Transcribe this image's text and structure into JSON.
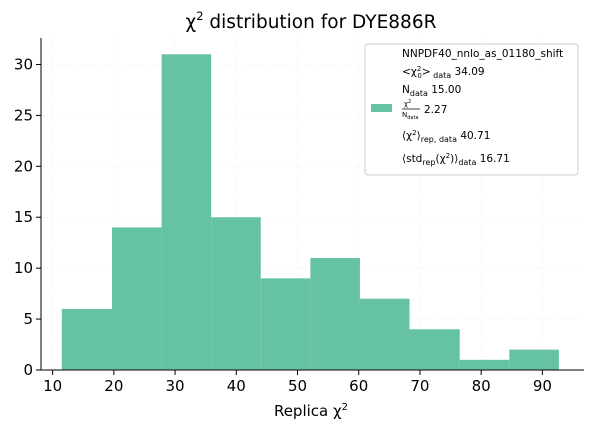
{
  "chart_data": {
    "type": "bar",
    "title_prefix": "χ",
    "title_sup": "2",
    "title_rest": " distribution for DYE886R",
    "xlabel_prefix": "Replica χ",
    "xlabel_sup": "2",
    "ylabel": "",
    "xlim": [
      8.1,
      96.8
    ],
    "ylim": [
      0,
      32.6
    ],
    "xticks": [
      10,
      20,
      30,
      40,
      50,
      60,
      70,
      80,
      90
    ],
    "yticks": [
      0,
      5,
      10,
      15,
      20,
      25,
      30
    ],
    "color": "#66c2a5",
    "bins": [
      {
        "x0": 11.5,
        "x1": 19.7,
        "count": 6
      },
      {
        "x0": 19.7,
        "x1": 27.8,
        "count": 14
      },
      {
        "x0": 27.8,
        "x1": 35.9,
        "count": 31
      },
      {
        "x0": 35.9,
        "x1": 44.0,
        "count": 15
      },
      {
        "x0": 44.0,
        "x1": 52.1,
        "count": 9
      },
      {
        "x0": 52.1,
        "x1": 60.2,
        "count": 11
      },
      {
        "x0": 60.2,
        "x1": 68.3,
        "count": 7
      },
      {
        "x0": 68.3,
        "x1": 76.5,
        "count": 4
      },
      {
        "x0": 76.5,
        "x1": 84.6,
        "count": 1
      },
      {
        "x0": 84.6,
        "x1": 92.7,
        "count": 2
      }
    ],
    "grid": true,
    "legend_position": "top-right",
    "legend": {
      "line1": "NNPDF40_nnlo_as_01180_shift",
      "line2_value": "34.09",
      "line3_value": "15.00",
      "line4_value": "2.27",
      "line5_value": "40.71",
      "line6_value": "16.71"
    }
  }
}
